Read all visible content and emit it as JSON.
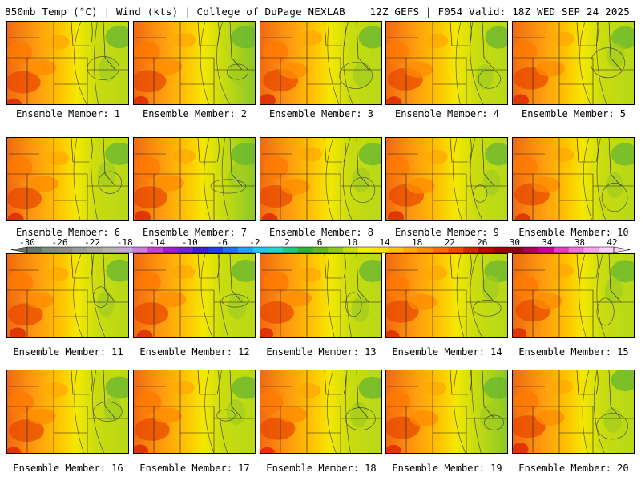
{
  "header": {
    "left": "850mb Temp (°C) | Wind (kts) | College of DuPage NEXLAB",
    "right": "12Z GEFS | F054 Valid: 18Z WED SEP 24 2025"
  },
  "members": [
    {
      "label": "Ensemble Member: 1",
      "warmth": 0.55,
      "green": 0.55
    },
    {
      "label": "Ensemble Member: 2",
      "warmth": 0.5,
      "green": 0.7
    },
    {
      "label": "Ensemble Member: 3",
      "warmth": 0.6,
      "green": 0.55
    },
    {
      "label": "Ensemble Member: 4",
      "warmth": 0.45,
      "green": 0.45
    },
    {
      "label": "Ensemble Member: 5",
      "warmth": 0.55,
      "green": 0.5
    },
    {
      "label": "Ensemble Member: 6",
      "warmth": 0.4,
      "green": 0.6
    },
    {
      "label": "Ensemble Member: 7",
      "warmth": 0.45,
      "green": 0.65
    },
    {
      "label": "Ensemble Member: 8",
      "warmth": 0.45,
      "green": 0.55
    },
    {
      "label": "Ensemble Member: 9",
      "warmth": 0.45,
      "green": 0.5
    },
    {
      "label": "Ensemble Member: 10",
      "warmth": 0.55,
      "green": 0.55
    },
    {
      "label": "Ensemble Member: 11",
      "warmth": 0.6,
      "green": 0.45
    },
    {
      "label": "Ensemble Member: 12",
      "warmth": 0.5,
      "green": 0.6
    },
    {
      "label": "Ensemble Member: 13",
      "warmth": 0.5,
      "green": 0.5
    },
    {
      "label": "Ensemble Member: 14",
      "warmth": 0.55,
      "green": 0.55
    },
    {
      "label": "Ensemble Member: 15",
      "warmth": 0.6,
      "green": 0.55
    },
    {
      "label": "Ensemble Member: 16",
      "warmth": 0.4,
      "green": 0.55
    },
    {
      "label": "Ensemble Member: 17",
      "warmth": 0.45,
      "green": 0.6
    },
    {
      "label": "Ensemble Member: 18",
      "warmth": 0.45,
      "green": 0.55
    },
    {
      "label": "Ensemble Member: 19",
      "warmth": 0.5,
      "green": 0.65
    },
    {
      "label": "Ensemble Member: 20",
      "warmth": 0.6,
      "green": 0.55
    }
  ],
  "colorbar": {
    "tick_labels": [
      "-30",
      "-26",
      "-22",
      "-18",
      "-14",
      "-10",
      "-6",
      "-2",
      "2",
      "6",
      "10",
      "14",
      "18",
      "22",
      "26",
      "30",
      "34",
      "38",
      "42"
    ],
    "colors": [
      "#707070",
      "#7f8c7f",
      "#8c8c8c",
      "#9a9a9a",
      "#a6a6a6",
      "#b4b4b4",
      "#c8a6d8",
      "#d47cd6",
      "#c046c8",
      "#a020c8",
      "#7a20d0",
      "#4020c8",
      "#2040e0",
      "#2070f0",
      "#20a0f8",
      "#20c8f0",
      "#20d8c0",
      "#20c880",
      "#30b040",
      "#60b828",
      "#90c820",
      "#c8dc10",
      "#f0f000",
      "#ffe000",
      "#ffc400",
      "#ffa800",
      "#ff8c00",
      "#ff6a00",
      "#f04a00",
      "#e02000",
      "#c80000",
      "#a00000",
      "#8c0010",
      "#b00050",
      "#d00090",
      "#e040c0",
      "#f070e0",
      "#ffa0f0",
      "#ffd0ff"
    ]
  }
}
